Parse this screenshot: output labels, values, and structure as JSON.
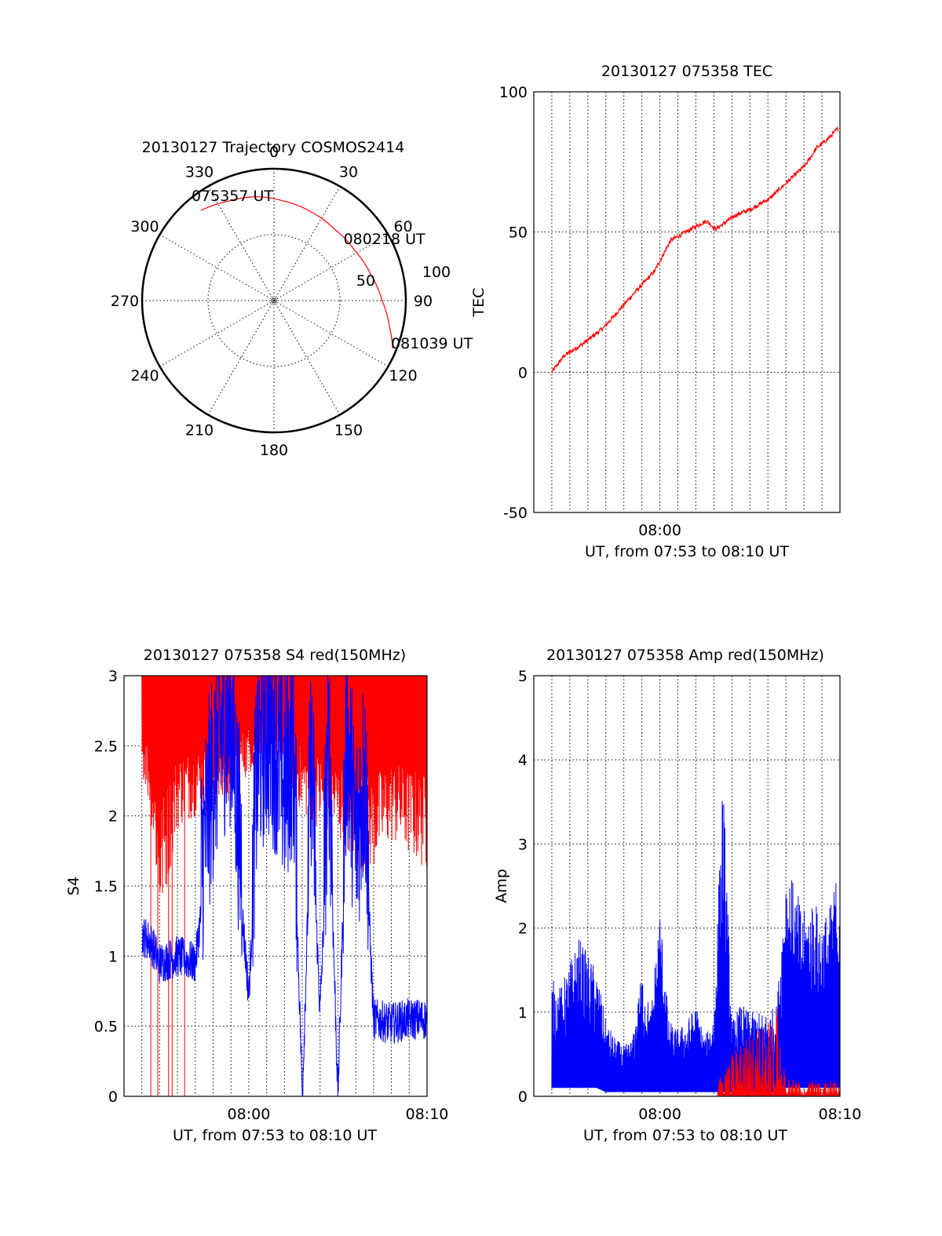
{
  "figure": {
    "background": "#ffffff",
    "colors": {
      "red": "#ff0000",
      "blue": "#0000ff"
    }
  },
  "chart_data": [
    {
      "type": "polar",
      "title": "20130127 Trajectory COSMOS2414",
      "angle_labels": [
        "0",
        "30",
        "60",
        "90",
        "120",
        "150",
        "180",
        "210",
        "240",
        "270",
        "300",
        "330"
      ],
      "angles_deg": [
        0,
        30,
        60,
        90,
        120,
        150,
        180,
        210,
        240,
        270,
        300,
        330
      ],
      "radial_labels": [
        "50",
        "100"
      ],
      "radial_values": [
        50,
        100
      ],
      "r_max": 100,
      "series": [
        {
          "color": "#ff0000",
          "points": [
            {
              "az": 321,
              "r": 88
            },
            {
              "az": 335,
              "r": 83
            },
            {
              "az": 350,
              "r": 80
            },
            {
              "az": 5,
              "r": 76
            },
            {
              "az": 22,
              "r": 73
            },
            {
              "az": 40,
              "r": 71
            },
            {
              "az": 58,
              "r": 72
            },
            {
              "az": 75,
              "r": 76
            },
            {
              "az": 90,
              "r": 82
            },
            {
              "az": 103,
              "r": 90
            },
            {
              "az": 112,
              "r": 97
            }
          ]
        }
      ],
      "annotations": [
        {
          "text": "075357 UT",
          "az": 321,
          "r": 88
        },
        {
          "text": "080218 UT",
          "az": 58,
          "r": 72
        },
        {
          "text": "081039 UT",
          "az": 112,
          "r": 97
        }
      ]
    },
    {
      "type": "line",
      "title": "20130127 075358 TEC",
      "xlabel": "UT, from 07:53 to 08:10 UT",
      "ylabel": "TEC",
      "xlim_min": [
        -7,
        10
      ],
      "ylim": [
        -50,
        100
      ],
      "yticks": [
        -50,
        0,
        50,
        100
      ],
      "xticks": [
        {
          "value": 0,
          "label": "08:00"
        }
      ],
      "vgrid_min": [
        -6,
        -5,
        -4,
        -3,
        -2,
        -1,
        0,
        1,
        2,
        3,
        4,
        5,
        6,
        7,
        8,
        9
      ],
      "series": [
        {
          "color": "#ff0000",
          "x_min": [
            -6.0,
            -5.3,
            -4.3,
            -3.1,
            -1.6,
            -0.3,
            0.6,
            2.0,
            2.6,
            3.1,
            4.2,
            5.0,
            6.1,
            7.1,
            8.1,
            8.7,
            9.3,
            9.9
          ],
          "y": [
            0,
            6,
            10,
            16,
            27,
            36,
            47,
            52,
            54,
            51,
            56,
            58,
            62,
            68,
            74,
            80,
            83,
            87
          ]
        }
      ]
    },
    {
      "type": "line",
      "title": "20130127 075358 S4 red(150MHz)",
      "xlabel": "UT, from 07:53 to 08:10 UT",
      "ylabel": "S4",
      "xlim_min": [
        -7,
        10
      ],
      "ylim": [
        0,
        3
      ],
      "yticks": [
        0,
        0.5,
        1,
        1.5,
        2,
        2.5,
        3
      ],
      "ytick_labels": [
        "0",
        "0.5",
        "1",
        "1.5",
        "2",
        "2.5",
        "3"
      ],
      "xticks": [
        {
          "value": 0,
          "label": "08:00"
        },
        {
          "value": 10,
          "label": "08:10"
        }
      ],
      "vgrid_min": [
        -6,
        -5,
        -4,
        -3,
        -2,
        -1,
        0,
        1,
        2,
        3,
        4,
        5,
        6,
        7,
        8,
        9
      ],
      "series": [
        {
          "color": "#ff0000",
          "x_min": [
            -6.0,
            -5.5,
            -5.0,
            -4.0,
            -3.0,
            -2.0,
            -1.0,
            0.0,
            1.0,
            2.0,
            3.0,
            4.0,
            5.0,
            6.0,
            7.0,
            8.0,
            9.0,
            10.0
          ],
          "base": [
            2.3,
            2.0,
            1.2,
            1.9,
            2.0,
            2.0,
            2.1,
            2.3,
            2.4,
            2.3,
            2.0,
            1.9,
            1.8,
            1.6,
            1.6,
            1.8,
            1.7,
            1.6
          ],
          "peak": [
            3,
            3,
            3,
            3,
            3,
            3,
            3,
            3,
            3,
            3,
            3,
            3,
            3,
            3,
            3,
            3,
            3,
            3
          ]
        },
        {
          "color": "#0000ff",
          "x_min": [
            -6.0,
            -5.5,
            -5.0,
            -4.0,
            -3.0,
            -2.5,
            -2.0,
            -1.5,
            -1.0,
            -0.5,
            0.0,
            0.5,
            1.0,
            1.5,
            2.0,
            2.5,
            3.0,
            3.5,
            4.0,
            4.5,
            5.0,
            5.5,
            6.0,
            6.5,
            7.0,
            8.0,
            9.0,
            10.0
          ],
          "y": [
            1.15,
            1.1,
            0.95,
            1.0,
            0.95,
            1.5,
            2.0,
            2.3,
            2.4,
            1.5,
            0.72,
            2.1,
            2.3,
            2.2,
            1.9,
            2.2,
            0.0,
            2.1,
            0.6,
            2.2,
            0.0,
            2.3,
            1.5,
            2.0,
            0.55,
            0.52,
            0.55,
            0.55
          ]
        }
      ]
    },
    {
      "type": "line",
      "title": "20130127 075358 Amp red(150MHz)",
      "xlabel": "UT, from 07:53 to 08:10 UT",
      "ylabel": "Amp",
      "xlim_min": [
        -7,
        10
      ],
      "ylim": [
        0,
        5
      ],
      "yticks": [
        0,
        1,
        2,
        3,
        4,
        5
      ],
      "xticks": [
        {
          "value": 0,
          "label": "08:00"
        },
        {
          "value": 10,
          "label": "08:10"
        }
      ],
      "vgrid_min": [
        -6,
        -5,
        -4,
        -3,
        -2,
        -1,
        0,
        1,
        2,
        3,
        4,
        5,
        6,
        7,
        8,
        9
      ],
      "series": [
        {
          "color": "#0000ff",
          "x_min": [
            -6.0,
            -5.5,
            -5.0,
            -4.5,
            -4.0,
            -3.5,
            -3.0,
            -2.5,
            -2.0,
            -1.5,
            -1.0,
            -0.5,
            0.0,
            0.5,
            1.0,
            1.5,
            2.0,
            2.5,
            3.0,
            3.5,
            4.0,
            4.5,
            5.0,
            5.5,
            6.0,
            6.5,
            7.0,
            7.5,
            8.0,
            8.5,
            9.0,
            9.5,
            10.0
          ],
          "peak": [
            1.4,
            1.3,
            1.6,
            1.9,
            1.7,
            1.5,
            0.9,
            0.7,
            0.6,
            0.7,
            1.5,
            1.0,
            2.3,
            0.9,
            0.8,
            0.9,
            1.1,
            0.7,
            1.0,
            3.9,
            0.9,
            1.1,
            1.0,
            1.0,
            1.0,
            1.1,
            2.8,
            2.5,
            2.2,
            2.4,
            2.1,
            2.3,
            2.9
          ],
          "base": [
            0.1,
            0.1,
            0.1,
            0.1,
            0.1,
            0.1,
            0.05,
            0.05,
            0.05,
            0.05,
            0.05,
            0.05,
            0.05,
            0.05,
            0.05,
            0.05,
            0.05,
            0.05,
            0.05,
            0.05,
            0.05,
            0.05,
            0.05,
            0.05,
            0.05,
            0.05,
            0.1,
            0.1,
            0.1,
            0.1,
            0.1,
            0.1,
            0.1
          ]
        },
        {
          "color": "#ff0000",
          "x_min": [
            3.2,
            3.8,
            6.2,
            6.5,
            7.0,
            7.5,
            8.0,
            8.5,
            9.0,
            9.5,
            10.0
          ],
          "peak": [
            0.15,
            0.5,
            1.0,
            1.1,
            0.2,
            0.2,
            0.15,
            0.2,
            0.15,
            0.2,
            0.15
          ]
        }
      ]
    }
  ]
}
